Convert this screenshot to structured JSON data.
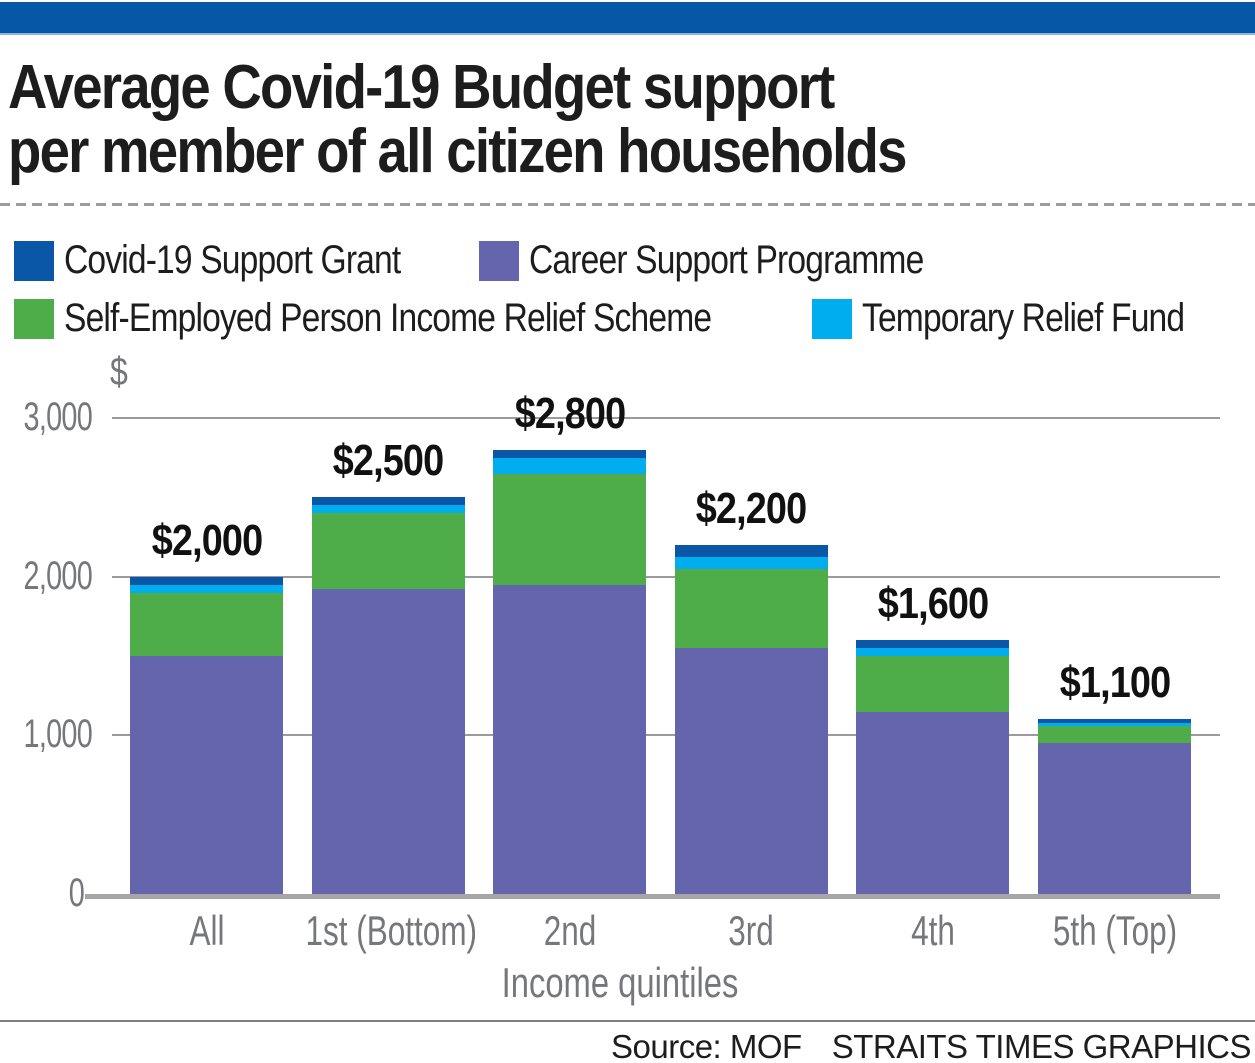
{
  "header": {
    "accent_color": "#0757a7"
  },
  "title": {
    "line1": "Average Covid-19 Budget support",
    "line2": "per member of all citizen households"
  },
  "legend": [
    {
      "label": "Covid-19 Support Grant",
      "color": "#0a57a7"
    },
    {
      "label": "Career Support Programme",
      "color": "#6565ad"
    },
    {
      "label": "Self-Employed Person Income Relief Scheme",
      "color": "#4ead49"
    },
    {
      "label": "Temporary Relief Fund",
      "color": "#00adee"
    }
  ],
  "chart_data": {
    "type": "bar",
    "stacked": true,
    "title": "Average Covid-19 Budget support per member of all citizen households",
    "xlabel": "Income quintiles",
    "ylabel": "$",
    "ylim": [
      0,
      3000
    ],
    "grid": true,
    "legend_position": "top",
    "yticks": [
      {
        "value": 3000,
        "label": "3,000"
      },
      {
        "value": 2000,
        "label": "2,000"
      },
      {
        "value": 1000,
        "label": "1,000"
      },
      {
        "value": 0,
        "label": "0"
      }
    ],
    "categories": [
      "All",
      "1st (Bottom)",
      "2nd",
      "3rd",
      "4th",
      "5th (Top)"
    ],
    "totals": [
      "$2,000",
      "$2,500",
      "$2,800",
      "$2,200",
      "$1,600",
      "$1,100"
    ],
    "total_values": [
      2000,
      2500,
      2800,
      2200,
      1600,
      1100
    ],
    "series": [
      {
        "name": "Career Support Programme",
        "color": "#6565ad",
        "values": [
          1500,
          1925,
          1950,
          1550,
          1150,
          950
        ]
      },
      {
        "name": "Self-Employed Person Income Relief Scheme",
        "color": "#4ead49",
        "values": [
          400,
          475,
          700,
          500,
          350,
          110
        ]
      },
      {
        "name": "Temporary Relief Fund",
        "color": "#00adee",
        "values": [
          50,
          50,
          100,
          75,
          50,
          20
        ]
      },
      {
        "name": "Covid-19 Support Grant",
        "color": "#0a57a7",
        "values": [
          50,
          50,
          50,
          75,
          50,
          20
        ]
      }
    ]
  },
  "footer": {
    "source": "Source: MOF",
    "credit": "STRAITS TIMES GRAPHICS"
  }
}
